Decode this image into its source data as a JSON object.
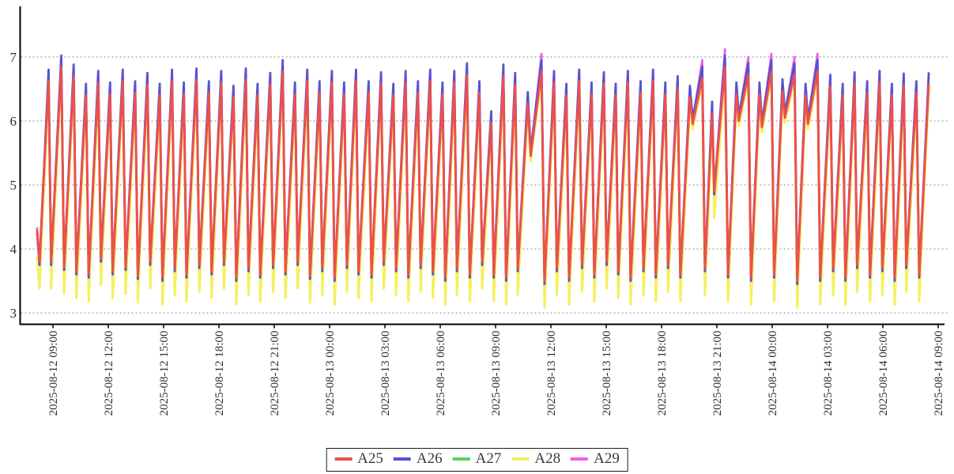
{
  "chart_data": {
    "type": "line",
    "title": "",
    "x_axis": {
      "tick_interval_hours": 3,
      "tick_labels": [
        "2025-08-12 09:00",
        "2025-08-12 12:00",
        "2025-08-12 15:00",
        "2025-08-12 18:00",
        "2025-08-12 21:00",
        "2025-08-13 00:00",
        "2025-08-13 03:00",
        "2025-08-13 06:00",
        "2025-08-13 09:00",
        "2025-08-13 12:00",
        "2025-08-13 15:00",
        "2025-08-13 18:00",
        "2025-08-13 21:00",
        "2025-08-14 00:00",
        "2025-08-14 03:00",
        "2025-08-14 06:00",
        "2025-08-14 09:00"
      ]
    },
    "y_axis": {
      "tick_labels": [
        "3",
        "4",
        "5",
        "6",
        "7"
      ],
      "ticks": [
        3,
        4,
        5,
        6,
        7
      ],
      "range_shown": [
        2.8,
        7.8
      ],
      "grid": true
    },
    "legend": {
      "position": "bottom-center",
      "entries": [
        "A25",
        "A26",
        "A27",
        "A28",
        "A29"
      ]
    },
    "colors": {
      "grid": "#8c8c8c",
      "axis": "#000000",
      "tick_text": "#2e2e2e"
    },
    "series": [
      {
        "name": "A25",
        "color": "#ed504b",
        "width": 2.8
      },
      {
        "name": "A26",
        "color": "#5453d4",
        "width": 2.8
      },
      {
        "name": "A27",
        "color": "#57d35f",
        "width": 2.2
      },
      {
        "name": "A28",
        "color": "#f5f05f",
        "width": 3.0
      },
      {
        "name": "A29",
        "color": "#ee5fe7",
        "width": 2.6
      }
    ],
    "draw_order": [
      "A28",
      "A27",
      "A29",
      "A26",
      "A25"
    ],
    "waveform": {
      "note": "Sawtooth oscillation read from pixels: each entry is one cycle [peak_base(A26), trough_after_base(A25), duration_minutes, magenta_tip_flag]. Series values derive from the per-series offsets. Troughs > 5 are shallow dips (double-peak groups).",
      "start_hours_before_first_tick": 0.73,
      "start_trough_value": 3.8,
      "lead_in_value": 4.3,
      "lead_in_minutes": 8,
      "rise_fraction": 0.78,
      "end_hours": 47.55,
      "series_offsets": {
        "peak": {
          "A25": -0.18,
          "A26": 0.0,
          "A27": -0.09,
          "A28": -0.26,
          "A29": -0.05
        },
        "peak_flag_a29": 0.1,
        "trough": {
          "A25": 0.0,
          "A26": -0.05,
          "A27": 0.04,
          "A28": -0.42,
          "A29": 0.03
        },
        "shallow": {
          "A25": 0.0,
          "A26": 0.08,
          "A27": 0.03,
          "A28": -0.08,
          "A29": 0.05
        }
      },
      "cycles": [
        [
          6.8,
          3.8,
          38,
          0
        ],
        [
          7.02,
          3.72,
          42,
          0
        ],
        [
          6.88,
          3.65,
          40,
          0
        ],
        [
          6.58,
          3.6,
          40,
          0
        ],
        [
          6.78,
          3.85,
          40,
          0
        ],
        [
          6.6,
          3.65,
          38,
          0
        ],
        [
          6.8,
          3.72,
          42,
          0
        ],
        [
          6.62,
          3.58,
          40,
          0
        ],
        [
          6.75,
          3.8,
          40,
          0
        ],
        [
          6.58,
          3.55,
          40,
          0
        ],
        [
          6.8,
          3.7,
          40,
          0
        ],
        [
          6.6,
          3.6,
          38,
          0
        ],
        [
          6.82,
          3.75,
          42,
          0
        ],
        [
          6.62,
          3.65,
          40,
          0
        ],
        [
          6.78,
          3.8,
          40,
          0
        ],
        [
          6.55,
          3.55,
          40,
          0
        ],
        [
          6.82,
          3.7,
          40,
          0
        ],
        [
          6.58,
          3.6,
          38,
          0
        ],
        [
          6.75,
          3.75,
          42,
          0
        ],
        [
          6.95,
          3.65,
          40,
          0
        ],
        [
          6.6,
          3.8,
          40,
          0
        ],
        [
          6.8,
          3.58,
          40,
          0
        ],
        [
          6.62,
          3.7,
          40,
          0
        ],
        [
          6.78,
          3.55,
          40,
          0
        ],
        [
          6.6,
          3.75,
          40,
          0
        ],
        [
          6.8,
          3.65,
          38,
          0
        ],
        [
          6.62,
          3.6,
          42,
          0
        ],
        [
          6.76,
          3.8,
          40,
          0
        ],
        [
          6.58,
          3.7,
          40,
          0
        ],
        [
          6.78,
          3.6,
          40,
          0
        ],
        [
          6.62,
          3.75,
          40,
          0
        ],
        [
          6.8,
          3.65,
          40,
          0
        ],
        [
          6.6,
          3.55,
          40,
          0
        ],
        [
          6.78,
          3.7,
          38,
          0
        ],
        [
          6.9,
          3.6,
          42,
          0
        ],
        [
          6.62,
          3.8,
          40,
          0
        ],
        [
          6.15,
          3.6,
          38,
          0
        ],
        [
          6.88,
          3.55,
          40,
          0
        ],
        [
          6.75,
          3.7,
          38,
          0
        ],
        [
          6.45,
          5.45,
          42,
          0
        ],
        [
          6.95,
          3.5,
          45,
          1
        ],
        [
          6.78,
          3.7,
          40,
          0
        ],
        [
          6.58,
          3.55,
          40,
          0
        ],
        [
          6.8,
          3.75,
          42,
          0
        ],
        [
          6.6,
          3.6,
          40,
          0
        ],
        [
          6.76,
          3.8,
          40,
          0
        ],
        [
          6.58,
          3.65,
          38,
          0
        ],
        [
          6.78,
          3.55,
          40,
          0
        ],
        [
          6.62,
          3.7,
          42,
          0
        ],
        [
          6.8,
          3.6,
          40,
          0
        ],
        [
          6.6,
          3.75,
          40,
          0
        ],
        [
          6.7,
          3.6,
          40,
          0
        ],
        [
          6.55,
          5.95,
          40,
          0
        ],
        [
          6.85,
          3.7,
          40,
          1
        ],
        [
          6.3,
          4.9,
          30,
          0
        ],
        [
          7.02,
          3.6,
          45,
          1
        ],
        [
          6.6,
          6.0,
          35,
          0
        ],
        [
          6.9,
          3.55,
          40,
          1
        ],
        [
          6.6,
          5.9,
          35,
          0
        ],
        [
          6.95,
          3.6,
          40,
          1
        ],
        [
          6.65,
          6.05,
          35,
          0
        ],
        [
          6.9,
          3.5,
          40,
          1
        ],
        [
          6.58,
          5.95,
          35,
          0
        ],
        [
          6.95,
          3.55,
          40,
          1
        ],
        [
          6.72,
          3.7,
          42,
          0
        ],
        [
          6.58,
          3.55,
          40,
          0
        ],
        [
          6.76,
          3.75,
          38,
          0
        ],
        [
          6.62,
          3.6,
          42,
          0
        ],
        [
          6.78,
          3.7,
          40,
          0
        ],
        [
          6.58,
          3.55,
          40,
          0
        ],
        [
          6.74,
          3.75,
          38,
          0
        ],
        [
          6.62,
          3.6,
          42,
          0
        ],
        [
          6.76,
          3.7,
          40,
          0
        ]
      ]
    }
  }
}
